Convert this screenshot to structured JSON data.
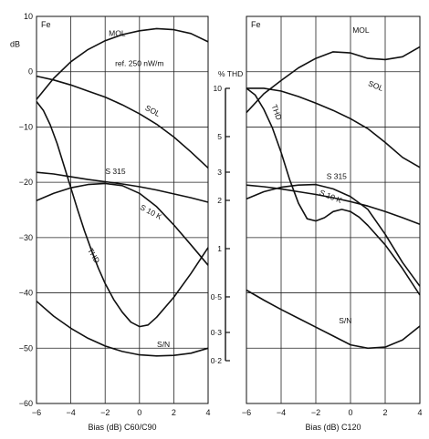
{
  "chart_data": [
    {
      "type": "line",
      "panel_label": "Fe",
      "xlabel": "Bias (dB) C60/C90",
      "ylabel": "dB",
      "xlim": [
        -6,
        4
      ],
      "ylim": [
        -60,
        10
      ],
      "x_ticks": [
        -6,
        -4,
        -2,
        0,
        2,
        4
      ],
      "y_ticks": [
        10,
        0,
        -10,
        -20,
        -30,
        -40,
        -50,
        -60
      ],
      "grid": true,
      "annotation": "ref. 250 nW/m",
      "series": [
        {
          "name": "MOL",
          "label_at": [
            -1.3,
            6.5
          ],
          "x": [
            -6,
            -5,
            -4,
            -3,
            -2,
            -1,
            0,
            1,
            2,
            3,
            4
          ],
          "y": [
            -5,
            -1.2,
            1.8,
            4.0,
            5.6,
            6.7,
            7.4,
            7.8,
            7.6,
            6.9,
            5.4
          ]
        },
        {
          "name": "SOL",
          "label_at": [
            0.7,
            -7.5
          ],
          "x": [
            -6,
            -5,
            -4,
            -3,
            -2,
            -1,
            0,
            1,
            2,
            3,
            4
          ],
          "y": [
            -0.8,
            -1.5,
            -2.4,
            -3.5,
            -4.6,
            -6.0,
            -7.6,
            -9.5,
            -11.8,
            -14.5,
            -17.4
          ]
        },
        {
          "name": "S 315",
          "label_at": [
            -1.4,
            -18.5
          ],
          "x": [
            -6,
            -5,
            -4,
            -3,
            -2,
            -1,
            0,
            1,
            2,
            3,
            4
          ],
          "y": [
            -18.2,
            -18.5,
            -19.0,
            -19.5,
            -19.9,
            -20.3,
            -20.8,
            -21.4,
            -22.1,
            -22.8,
            -23.6
          ]
        },
        {
          "name": "S 10 K",
          "label_at": [
            0.6,
            -25.8
          ],
          "x": [
            -6,
            -5,
            -4,
            -3,
            -2,
            -1,
            0,
            1,
            2,
            3,
            4
          ],
          "y": [
            -23.3,
            -22.0,
            -21.0,
            -20.4,
            -20.2,
            -20.6,
            -22.0,
            -24.4,
            -27.7,
            -31.3,
            -35.0
          ]
        },
        {
          "name": "THD",
          "label_at": [
            -2.8,
            -33.5
          ],
          "x": [
            -6,
            -5.6,
            -5.2,
            -4.8,
            -4.4,
            -4.0,
            -3.6,
            -3.2,
            -2.8,
            -2.4,
            -2.0,
            -1.5,
            -1.0,
            -0.5,
            0,
            0.5,
            1.0,
            2.0,
            3.0,
            4.0
          ],
          "y": [
            -5.4,
            -7.0,
            -9.6,
            -13.0,
            -17.0,
            -21.0,
            -25.0,
            -28.8,
            -32.3,
            -35.5,
            -38.3,
            -41.2,
            -43.5,
            -45.3,
            -46.1,
            -45.8,
            -44.4,
            -40.8,
            -36.5,
            -31.8
          ]
        },
        {
          "name": "S/N",
          "label_at": [
            1.4,
            -49.8
          ],
          "x": [
            -6,
            -5,
            -4,
            -3,
            -2,
            -1,
            0,
            1,
            2,
            3,
            4
          ],
          "y": [
            -41.5,
            -44.2,
            -46.4,
            -48.2,
            -49.6,
            -50.6,
            -51.2,
            -51.4,
            -51.3,
            -50.9,
            -50.0
          ]
        }
      ]
    },
    {
      "type": "line",
      "panel_label": "Fe",
      "xlabel": "Bias (dB) C120",
      "ylabel": "",
      "thd_axis_label": "% THD",
      "thd_ticks": [
        "10",
        "5",
        "3",
        "2",
        "1",
        "0·5",
        "0·3",
        "0·2"
      ],
      "xlim": [
        -6,
        4
      ],
      "ylim": [
        -60,
        10
      ],
      "x_ticks": [
        -6,
        -4,
        -2,
        0,
        2,
        4
      ],
      "y_ticks": [
        10,
        0,
        -10,
        -20,
        -30,
        -40,
        -50,
        -60
      ],
      "grid": true,
      "series": [
        {
          "name": "MOL",
          "label_at": [
            0.6,
            7.0
          ],
          "x": [
            -6,
            -5,
            -4,
            -3,
            -2,
            -1,
            0,
            1,
            2,
            3,
            4
          ],
          "y": [
            -7.4,
            -4.0,
            -1.6,
            0.7,
            2.4,
            3.6,
            3.4,
            2.4,
            2.2,
            2.7,
            4.5
          ]
        },
        {
          "name": "SOL",
          "label_at": [
            1.4,
            -3.0
          ],
          "x": [
            -6,
            -5,
            -4,
            -3,
            -2,
            -1,
            0,
            1,
            2,
            3,
            4
          ],
          "y": [
            -3.0,
            -3.0,
            -3.5,
            -4.5,
            -5.7,
            -7.0,
            -8.5,
            -10.3,
            -12.8,
            -15.5,
            -17.3
          ]
        },
        {
          "name": "S 315",
          "label_at": [
            -0.8,
            -19.4
          ],
          "x": [
            -6,
            -5,
            -4,
            -3,
            -2,
            -1,
            0,
            1,
            2,
            3,
            4
          ],
          "y": [
            -20.5,
            -20.8,
            -21.2,
            -21.7,
            -22.2,
            -22.8,
            -23.5,
            -24.3,
            -25.3,
            -26.4,
            -27.6
          ]
        },
        {
          "name": "S 10 K",
          "label_at": [
            -1.2,
            -23.0
          ],
          "x": [
            -6,
            -5,
            -4,
            -3,
            -2,
            -1,
            0,
            1,
            2,
            3,
            4
          ],
          "y": [
            -23.0,
            -21.7,
            -20.9,
            -20.5,
            -20.4,
            -21.2,
            -22.6,
            -24.9,
            -29.4,
            -34.5,
            -38.8
          ]
        },
        {
          "name": "THD",
          "label_at": [
            -4.4,
            -7.5
          ],
          "x": [
            -6,
            -5.5,
            -5,
            -4.5,
            -4,
            -3.5,
            -3,
            -2.5,
            -2,
            -1.5,
            -1,
            -0.5,
            0,
            0.5,
            1,
            2,
            3,
            4
          ],
          "y": [
            -3.0,
            -4.2,
            -6.8,
            -10.2,
            -14.6,
            -19.6,
            -23.8,
            -26.6,
            -27.0,
            -26.4,
            -25.3,
            -24.9,
            -25.3,
            -26.3,
            -27.8,
            -31.3,
            -35.6,
            -40.4
          ]
        },
        {
          "name": "S/N",
          "label_at": [
            -0.3,
            -45.5
          ],
          "x": [
            -6,
            -5,
            -4,
            -3,
            -2,
            -1,
            0,
            1,
            2,
            3,
            4
          ],
          "y": [
            -39.5,
            -41.3,
            -43.0,
            -44.6,
            -46.2,
            -47.8,
            -49.4,
            -50.0,
            -49.8,
            -48.5,
            -46.0
          ]
        }
      ]
    }
  ]
}
